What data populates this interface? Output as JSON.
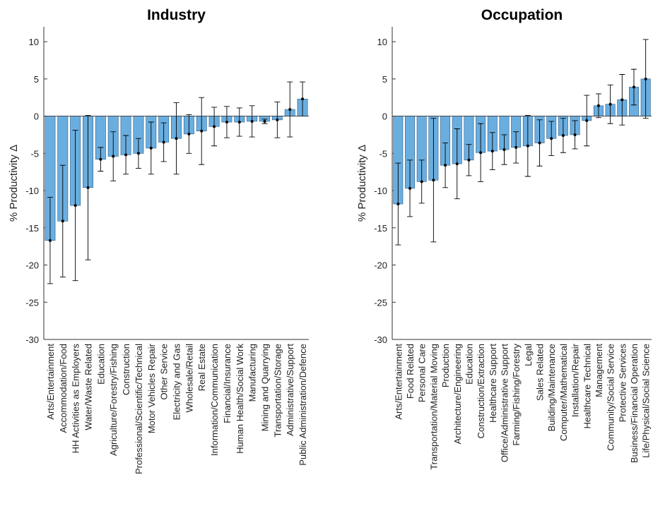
{
  "chart_data": [
    {
      "type": "bar",
      "title": "Industry",
      "y_label": "% Productivity Δ",
      "color": "#6aaee0",
      "categories": [
        "Arts/Entertainment",
        "Accommodation/Food",
        "HH Activities as Employers",
        "Water/Waste Related",
        "Education",
        "Agriculture/Forestry/Fishing",
        "Construction",
        "Professional/Scientific/Technical",
        "Motor Vehicles Repair",
        "Other Service",
        "Electricity and Gas",
        "Wholesale/Retail",
        "Real Estate",
        "Information/Communication",
        "Financial/Insurance",
        "Human Health/Social Work",
        "Manufacturing",
        "Mining and Quarrying",
        "Transportation/Storage",
        "Administrative/Support",
        "Public Administration/Defence"
      ],
      "values": [
        -16.7,
        -14.1,
        -12.0,
        -9.6,
        -5.8,
        -5.4,
        -5.2,
        -5.0,
        -4.3,
        -3.5,
        -3.0,
        -2.4,
        -2.0,
        -1.4,
        -0.8,
        -0.8,
        -0.7,
        -0.7,
        -0.5,
        0.9,
        2.3
      ],
      "errors": [
        5.8,
        7.5,
        10.1,
        9.7,
        1.6,
        3.3,
        2.6,
        2.0,
        3.5,
        2.6,
        4.8,
        2.6,
        4.5,
        2.6,
        2.1,
        1.9,
        2.1,
        0.3,
        2.4,
        3.7,
        2.3
      ],
      "ylim": [
        -30,
        12
      ],
      "yticks": [
        -30,
        -25,
        -20,
        -15,
        -10,
        -5,
        0,
        5,
        10
      ]
    },
    {
      "type": "bar",
      "title": "Occupation",
      "y_label": "% Productivity Δ",
      "color": "#6aaee0",
      "categories": [
        "Arts/Entertainment",
        "Food Related",
        "Personal Care",
        "Transportation/Material Moving",
        "Production",
        "Architecture/Engineering",
        "Education",
        "Construction/Extraction",
        "Healthcare Support",
        "Office/Administrative Support",
        "Farming/Fishing/Forestry",
        "Legal",
        "Sales Related",
        "Building/Maintenance",
        "Computer/Mathematical",
        "Installation/Repair",
        "Healthcare Technical",
        "Management",
        "Community/Social Service",
        "Protective Services",
        "Business/Financial Operation",
        "Life/Physical/Social Science"
      ],
      "values": [
        -11.8,
        -9.7,
        -8.8,
        -8.6,
        -6.6,
        -6.4,
        -5.9,
        -4.9,
        -4.7,
        -4.5,
        -4.2,
        -4.0,
        -3.6,
        -3.0,
        -2.6,
        -2.5,
        -0.6,
        1.4,
        1.6,
        2.2,
        3.9,
        5.0
      ],
      "errors": [
        5.5,
        3.8,
        2.9,
        8.3,
        3.0,
        4.7,
        2.1,
        3.9,
        2.5,
        2.0,
        2.1,
        4.1,
        3.1,
        2.3,
        2.3,
        1.9,
        3.4,
        1.6,
        2.6,
        3.4,
        2.4,
        5.3
      ],
      "ylim": [
        -30,
        12
      ],
      "yticks": [
        -30,
        -25,
        -20,
        -15,
        -10,
        -5,
        0,
        5,
        10
      ]
    }
  ]
}
